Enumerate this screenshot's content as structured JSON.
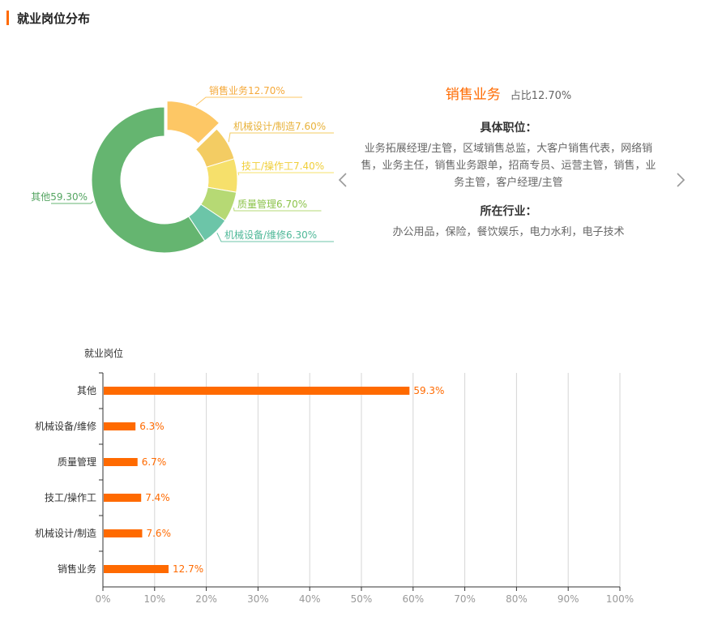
{
  "section": {
    "title": "就业岗位分布"
  },
  "detail": {
    "category": "销售业务",
    "share": "占比12.70%",
    "positions_heading": "具体职位：",
    "positions": "业务拓展经理/主管，区域销售总监，大客户销售代表，网络销售，业务主任，销售业务跟单，招商专员、运营主管，销售，业务主管，客户经理/主管",
    "industries_heading": "所在行业：",
    "industries": "办公用品，保险，餐饮娱乐，电力水利，电子技术"
  },
  "icons": {
    "prev": "chevron-left-icon",
    "next": "chevron-right-icon"
  },
  "chart_data": [
    {
      "type": "pie",
      "donut": true,
      "slices": [
        {
          "name": "销售业务",
          "value": 12.7,
          "label": "销售业务12.70%",
          "color": "#fdc765"
        },
        {
          "name": "机械设计/制造",
          "value": 7.6,
          "label": "机械设计/制造7.60%",
          "color": "#f3cc63"
        },
        {
          "name": "技工/操作工",
          "value": 7.4,
          "label": "技工/操作工7.40%",
          "color": "#f6e06b"
        },
        {
          "name": "质量管理",
          "value": 6.7,
          "label": "质量管理6.70%",
          "color": "#b6d974"
        },
        {
          "name": "机械设备/维修",
          "value": 6.3,
          "label": "机械设备/维修6.30%",
          "color": "#6cc5a8"
        },
        {
          "name": "其他",
          "value": 59.3,
          "label": "其他59.30%",
          "color": "#65b570"
        }
      ],
      "highlighted": "销售业务"
    },
    {
      "type": "bar",
      "orientation": "horizontal",
      "ylabel": "就业岗位",
      "categories": [
        "其他",
        "机械设备/维修",
        "质量管理",
        "技工/操作工",
        "机械设计/制造",
        "销售业务"
      ],
      "values": [
        59.3,
        6.3,
        6.7,
        7.4,
        7.6,
        12.7
      ],
      "value_labels": [
        "59.3%",
        "6.3%",
        "6.7%",
        "7.4%",
        "7.6%",
        "12.7%"
      ],
      "xlim": [
        0,
        100
      ],
      "xticks": [
        "0%",
        "10%",
        "20%",
        "30%",
        "40%",
        "50%",
        "60%",
        "70%",
        "80%",
        "90%",
        "100%"
      ],
      "grid": true,
      "bar_color": "#ff6a00",
      "label_color": "#ff6a00"
    }
  ]
}
